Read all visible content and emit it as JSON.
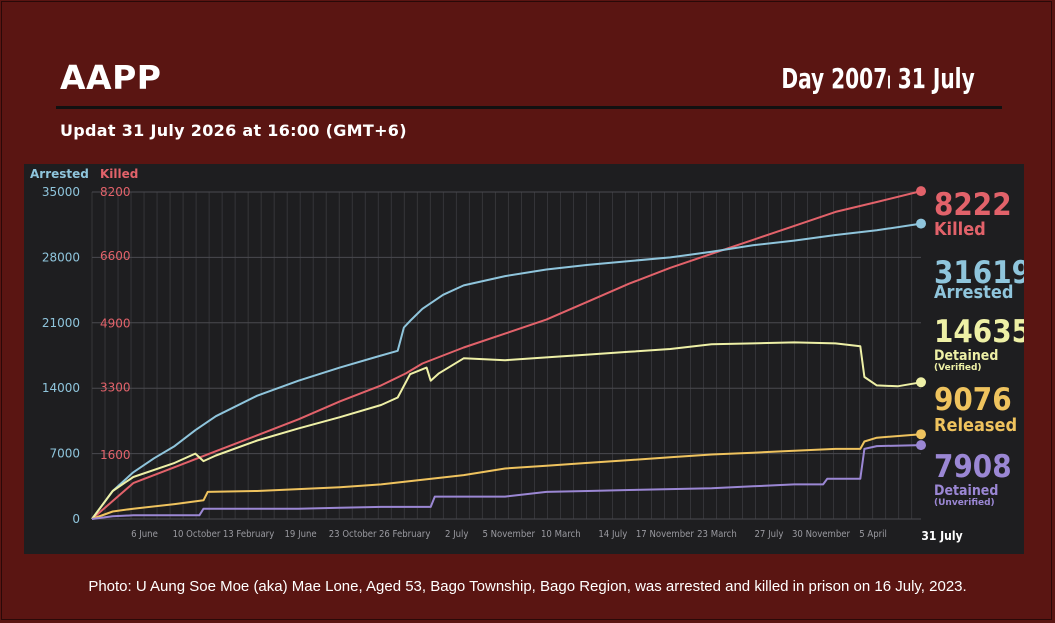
{
  "header": {
    "brand": "AAPP",
    "day_label": "Day 2007၊ 31 July",
    "update_text": "Updat 31 July 2026 at 16:00 (GMT+6)"
  },
  "caption": "Photo: U Aung Soe Moe (aka) Mae Lone, Aged 53, Bago Township, Bago Region, was arrested and killed in prison on 16 July, 2023.",
  "chart_data": {
    "type": "line",
    "axes": {
      "left_title": "Arrested",
      "right_title": "Killed",
      "arrested_ticks": [
        "0",
        "7000",
        "14000",
        "21000",
        "28000",
        "35000"
      ],
      "killed_ticks": [
        "1600",
        "3300",
        "4900",
        "6600",
        "8200"
      ],
      "arrested_ylim": [
        0,
        35000
      ],
      "killed_ylim": [
        0,
        8200
      ],
      "grid": true,
      "x_range_days": [
        0,
        2007
      ]
    },
    "x_ticks": [
      {
        "day": 127,
        "label": "6 June"
      },
      {
        "day": 253,
        "label": "10 October"
      },
      {
        "day": 379,
        "label": "13 February"
      },
      {
        "day": 505,
        "label": "19 June"
      },
      {
        "day": 631,
        "label": "23 October"
      },
      {
        "day": 757,
        "label": "26 February"
      },
      {
        "day": 883,
        "label": "2 July"
      },
      {
        "day": 1009,
        "label": "5 November"
      },
      {
        "day": 1135,
        "label": "10 March"
      },
      {
        "day": 1261,
        "label": "14 July"
      },
      {
        "day": 1387,
        "label": "17 November"
      },
      {
        "day": 1513,
        "label": "23 March"
      },
      {
        "day": 1639,
        "label": "27 July"
      },
      {
        "day": 1765,
        "label": "30 November"
      },
      {
        "day": 1891,
        "label": "5 April"
      },
      {
        "day": 2007,
        "label": "31 July"
      }
    ],
    "series": [
      {
        "name": "Killed",
        "axis": "killed",
        "color": "#e2626a",
        "final_value": "8222",
        "final_label": "Killed",
        "final_sub": "",
        "points": [
          [
            0,
            0
          ],
          [
            100,
            900
          ],
          [
            200,
            1300
          ],
          [
            300,
            1700
          ],
          [
            400,
            2100
          ],
          [
            500,
            2500
          ],
          [
            600,
            2950
          ],
          [
            700,
            3350
          ],
          [
            760,
            3650
          ],
          [
            800,
            3900
          ],
          [
            900,
            4300
          ],
          [
            1000,
            4650
          ],
          [
            1100,
            5000
          ],
          [
            1200,
            5450
          ],
          [
            1300,
            5900
          ],
          [
            1400,
            6300
          ],
          [
            1500,
            6650
          ],
          [
            1600,
            7000
          ],
          [
            1700,
            7350
          ],
          [
            1800,
            7700
          ],
          [
            1900,
            7950
          ],
          [
            2007,
            8222
          ]
        ]
      },
      {
        "name": "Arrested",
        "axis": "arrested",
        "color": "#8fc5dc",
        "final_value": "31619",
        "final_label": "Arrested",
        "final_sub": "",
        "points": [
          [
            0,
            0
          ],
          [
            50,
            3000
          ],
          [
            100,
            5000
          ],
          [
            150,
            6500
          ],
          [
            200,
            7800
          ],
          [
            250,
            9500
          ],
          [
            300,
            11000
          ],
          [
            400,
            13200
          ],
          [
            500,
            14800
          ],
          [
            600,
            16200
          ],
          [
            700,
            17500
          ],
          [
            740,
            18000
          ],
          [
            755,
            20500
          ],
          [
            770,
            21200
          ],
          [
            800,
            22500
          ],
          [
            850,
            24000
          ],
          [
            900,
            25000
          ],
          [
            1000,
            26000
          ],
          [
            1100,
            26700
          ],
          [
            1200,
            27200
          ],
          [
            1300,
            27600
          ],
          [
            1400,
            28000
          ],
          [
            1500,
            28600
          ],
          [
            1600,
            29300
          ],
          [
            1700,
            29800
          ],
          [
            1800,
            30400
          ],
          [
            1900,
            30900
          ],
          [
            2007,
            31619
          ]
        ]
      },
      {
        "name": "Detained",
        "axis": "arrested",
        "color": "#eef0a6",
        "final_value": "14635",
        "final_label": "Detained",
        "final_sub": "(Verified)",
        "points": [
          [
            0,
            0
          ],
          [
            50,
            3000
          ],
          [
            100,
            4500
          ],
          [
            200,
            6000
          ],
          [
            250,
            7000
          ],
          [
            270,
            6200
          ],
          [
            300,
            6800
          ],
          [
            400,
            8400
          ],
          [
            500,
            9700
          ],
          [
            600,
            10900
          ],
          [
            700,
            12200
          ],
          [
            740,
            13000
          ],
          [
            770,
            15500
          ],
          [
            810,
            16200
          ],
          [
            820,
            14800
          ],
          [
            840,
            15600
          ],
          [
            900,
            17200
          ],
          [
            1000,
            17000
          ],
          [
            1100,
            17300
          ],
          [
            1200,
            17600
          ],
          [
            1300,
            17900
          ],
          [
            1400,
            18200
          ],
          [
            1500,
            18700
          ],
          [
            1600,
            18800
          ],
          [
            1700,
            18900
          ],
          [
            1800,
            18800
          ],
          [
            1860,
            18500
          ],
          [
            1870,
            15200
          ],
          [
            1900,
            14300
          ],
          [
            1950,
            14200
          ],
          [
            2007,
            14635
          ]
        ]
      },
      {
        "name": "Released",
        "axis": "arrested",
        "color": "#efc35e",
        "final_value": "9076",
        "final_label": "Released",
        "final_sub": "",
        "points": [
          [
            0,
            0
          ],
          [
            50,
            800
          ],
          [
            100,
            1100
          ],
          [
            200,
            1600
          ],
          [
            270,
            2000
          ],
          [
            280,
            2900
          ],
          [
            400,
            3000
          ],
          [
            500,
            3200
          ],
          [
            600,
            3400
          ],
          [
            700,
            3700
          ],
          [
            800,
            4200
          ],
          [
            900,
            4700
          ],
          [
            1000,
            5400
          ],
          [
            1100,
            5700
          ],
          [
            1200,
            6000
          ],
          [
            1300,
            6300
          ],
          [
            1400,
            6600
          ],
          [
            1500,
            6900
          ],
          [
            1600,
            7100
          ],
          [
            1700,
            7300
          ],
          [
            1800,
            7500
          ],
          [
            1860,
            7500
          ],
          [
            1870,
            8300
          ],
          [
            1900,
            8700
          ],
          [
            2007,
            9076
          ]
        ]
      },
      {
        "name": "Detained",
        "axis": "arrested",
        "color": "#9b87d4",
        "final_value": "7908",
        "final_label": "Detained",
        "final_sub": "(Unverified)",
        "points": [
          [
            0,
            0
          ],
          [
            50,
            300
          ],
          [
            100,
            400
          ],
          [
            260,
            400
          ],
          [
            270,
            1100
          ],
          [
            500,
            1100
          ],
          [
            600,
            1200
          ],
          [
            700,
            1300
          ],
          [
            820,
            1300
          ],
          [
            830,
            2400
          ],
          [
            1000,
            2400
          ],
          [
            1100,
            2900
          ],
          [
            1200,
            3000
          ],
          [
            1300,
            3100
          ],
          [
            1400,
            3200
          ],
          [
            1500,
            3300
          ],
          [
            1600,
            3500
          ],
          [
            1700,
            3700
          ],
          [
            1770,
            3700
          ],
          [
            1780,
            4300
          ],
          [
            1860,
            4300
          ],
          [
            1870,
            7500
          ],
          [
            1900,
            7800
          ],
          [
            2007,
            7908
          ]
        ]
      }
    ]
  }
}
